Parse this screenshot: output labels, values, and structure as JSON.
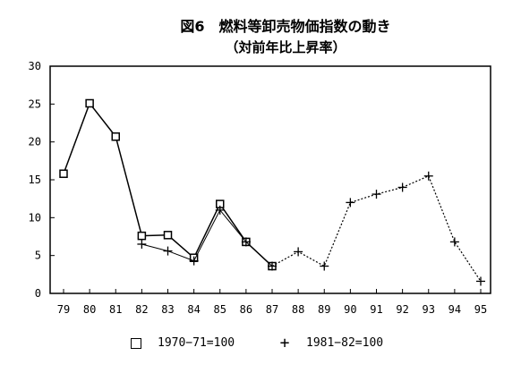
{
  "chart_data": {
    "type": "line",
    "title": "図6　燃料等卸売物価指数の動き",
    "subtitle": "（対前年比上昇率）",
    "xlabel": "",
    "ylabel": "",
    "categories": [
      "79",
      "80",
      "81",
      "82",
      "83",
      "84",
      "85",
      "86",
      "87",
      "88",
      "89",
      "90",
      "91",
      "92",
      "93",
      "94",
      "95"
    ],
    "ylim": [
      0,
      30
    ],
    "yticks": [
      0,
      5,
      10,
      15,
      20,
      25,
      30
    ],
    "grid": false,
    "legend_position": "bottom",
    "series": [
      {
        "name": "1970−71=100",
        "marker": "square",
        "line": "solid",
        "values": [
          15.8,
          25.1,
          20.7,
          7.6,
          7.7,
          4.7,
          11.8,
          6.8,
          3.6,
          null,
          null,
          null,
          null,
          null,
          null,
          null,
          null
        ]
      },
      {
        "name": "1981−82=100",
        "marker": "plus",
        "line": "solid-then-dotted",
        "values": [
          null,
          null,
          null,
          6.5,
          5.6,
          4.3,
          11.0,
          6.8,
          3.6,
          5.5,
          3.6,
          12.0,
          13.1,
          14.0,
          15.5,
          6.8,
          1.6
        ]
      }
    ]
  },
  "legend": {
    "series1_label": "1970−71=100",
    "series2_label": "1981−82=100"
  }
}
